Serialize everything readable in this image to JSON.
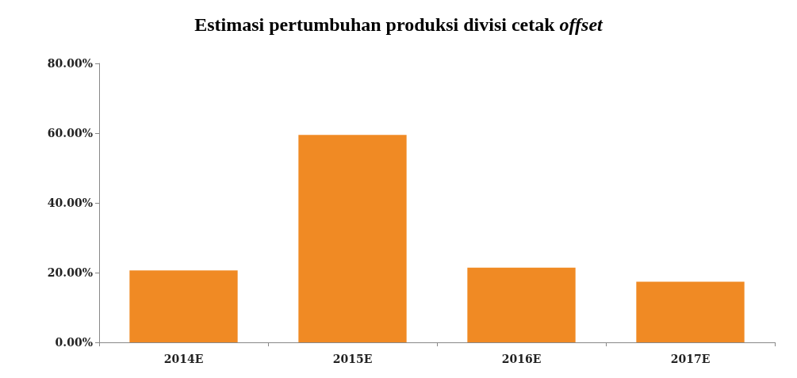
{
  "chart_data": {
    "type": "bar",
    "title": "Estimasi pertumbuhan produksi divisi cetak offset",
    "categories": [
      "2014E",
      "2015E",
      "2016E",
      "2017E"
    ],
    "values": [
      20.6,
      59.5,
      21.4,
      17.4
    ],
    "color": "#f08a24",
    "ylim": [
      0,
      80
    ],
    "yticks": [
      {
        "value": 0,
        "label": "0.00%"
      },
      {
        "value": 20,
        "label": "20.00%"
      },
      {
        "value": 40,
        "label": "40.00%"
      },
      {
        "value": 60,
        "label": "60.00%"
      },
      {
        "value": 80,
        "label": "80.00%"
      }
    ],
    "grid": false
  }
}
